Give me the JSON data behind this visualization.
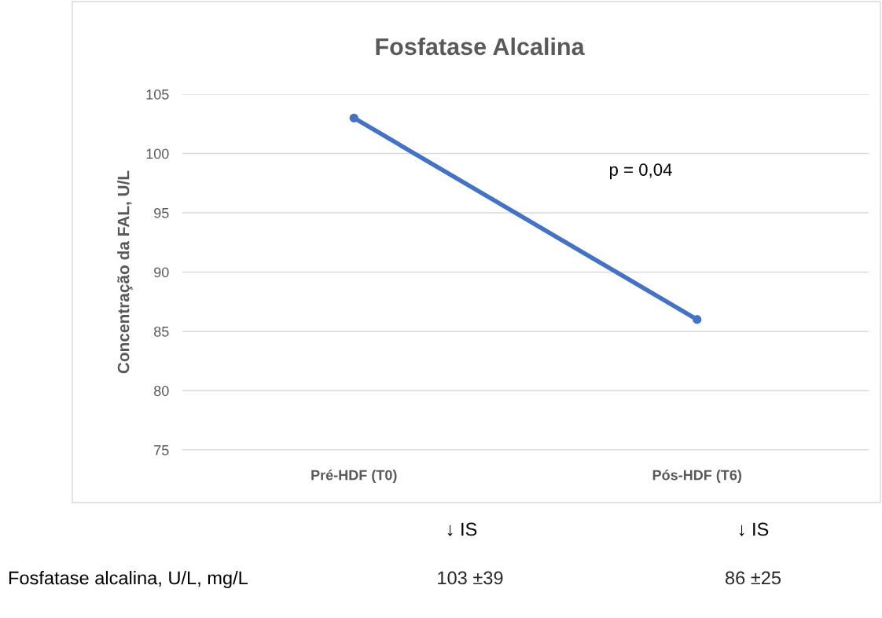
{
  "chart_data": {
    "type": "line",
    "title": "Fosfatase Alcalina",
    "ylabel": "Concentração da FAL, U/L",
    "categories": [
      "Pré-HDF (T0)",
      "Pós-HDF (T6)"
    ],
    "series": [
      {
        "color": "#4472c4",
        "values": [
          103,
          86
        ],
        "value_labels": [
          "103 ±39",
          "86 ±25"
        ]
      }
    ],
    "ylim": [
      75,
      105
    ],
    "yticks": [
      75,
      80,
      85,
      90,
      95,
      100,
      105
    ],
    "grid": "y",
    "marker": "circle",
    "line_style": "solid",
    "annotations": [
      "p = 0,04",
      "↓ IS",
      "↓ IS",
      "Fosfatase alcalina, U/L, mg/L"
    ]
  }
}
